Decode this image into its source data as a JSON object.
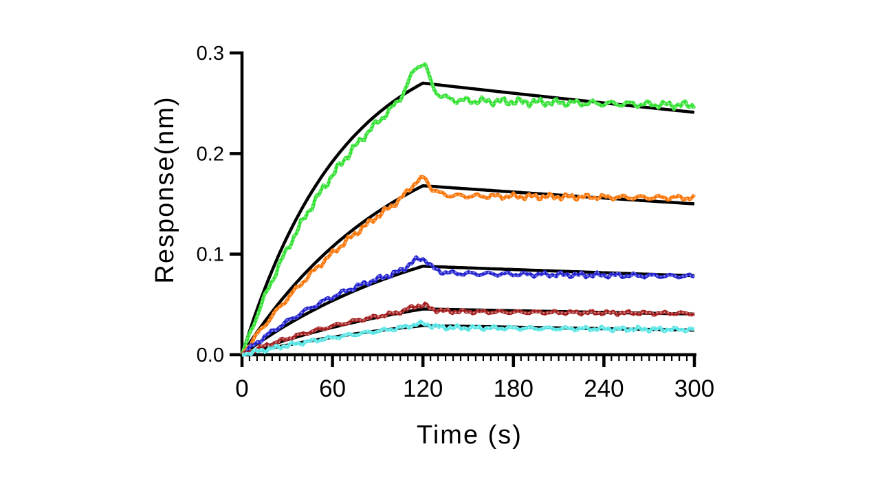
{
  "chart_data": {
    "type": "line",
    "title": "",
    "xlabel": "Time (s)",
    "ylabel": "Response(nm)",
    "x_range": [
      0,
      300
    ],
    "y_range": [
      0,
      0.3
    ],
    "x_major_ticks": [
      0,
      60,
      120,
      180,
      240,
      300
    ],
    "x_tick_labels": [
      "0",
      "60",
      "120",
      "180",
      "240",
      "300"
    ],
    "x_minor_tick_step": 5,
    "y_major_ticks": [
      0,
      0.1,
      0.2,
      0.3
    ],
    "y_tick_labels": [
      "0.0",
      "0.1",
      "0.2",
      "0.3"
    ],
    "grid": false,
    "legend": "none",
    "association_end_s": 120,
    "fit_color": "#000000",
    "series": [
      {
        "name": "green",
        "color": "#2EE02E",
        "data_peak": 0.291,
        "data_end": 0.248,
        "fit_peak": 0.27,
        "fit_end": 0.241,
        "k_obs": 0.015,
        "settle_after_drop": 0.253,
        "overshoot": 0.021,
        "assoc_bias_start": 0.86,
        "noise_amp": 0.004
      },
      {
        "name": "orange",
        "color": "#F97100",
        "data_peak": 0.175,
        "data_end": 0.156,
        "fit_peak": 0.168,
        "fit_end": 0.15,
        "k_obs": 0.0095,
        "settle_after_drop": 0.158,
        "overshoot": 0.008,
        "assoc_bias_start": 0.88,
        "noise_amp": 0.003
      },
      {
        "name": "blue",
        "color": "#1C1CCD",
        "data_peak": 0.095,
        "data_end": 0.078,
        "fit_peak": 0.088,
        "fit_end": 0.0785,
        "k_obs": 0.0075,
        "settle_after_drop": 0.081,
        "overshoot": 0.008,
        "assoc_bias_start": 1.14,
        "noise_amp": 0.0026
      },
      {
        "name": "dark-red",
        "color": "#A01818",
        "data_peak": 0.048,
        "data_end": 0.041,
        "fit_peak": 0.0455,
        "fit_end": 0.0405,
        "k_obs": 0.0065,
        "settle_after_drop": 0.043,
        "overshoot": 0.004,
        "assoc_bias_start": 1.1,
        "noise_amp": 0.0021
      },
      {
        "name": "cyan",
        "color": "#4FE3E3",
        "data_peak": 0.03,
        "data_end": 0.025,
        "fit_peak": 0.029,
        "fit_end": 0.0245,
        "k_obs": 0.0068,
        "settle_after_drop": 0.027,
        "overshoot": 0.002,
        "assoc_bias_start": 0.95,
        "noise_amp": 0.0023
      }
    ]
  }
}
